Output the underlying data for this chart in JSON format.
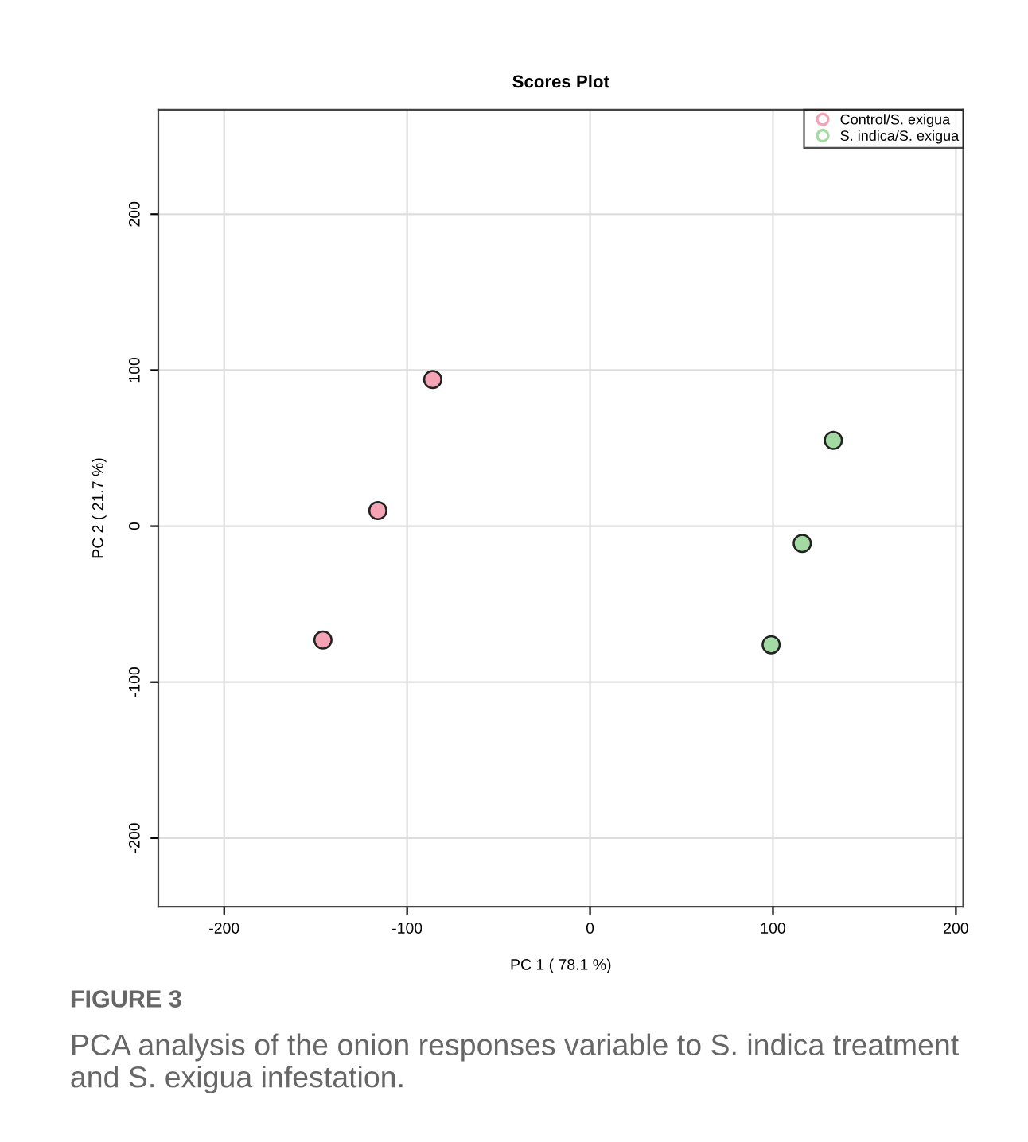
{
  "chart_data": {
    "type": "scatter",
    "title": "Scores Plot",
    "xlabel": "PC 1 ( 78.1 %)",
    "ylabel": "PC 2 ( 21.7 %)",
    "xlim": [
      -236,
      204
    ],
    "ylim": [
      -244,
      267
    ],
    "xticks": [
      -200,
      -100,
      0,
      100,
      200
    ],
    "yticks": [
      -200,
      -100,
      0,
      100,
      200
    ],
    "grid": true,
    "legend": "top right",
    "marker": "circle",
    "series": [
      {
        "name": "Control/S. exigua",
        "color": "#f4a3b4",
        "x": [
          -146,
          -116,
          -86
        ],
        "values": [
          -73,
          10,
          94
        ]
      },
      {
        "name": "S. indica/S. exigua",
        "color": "#a3d9a3",
        "x": [
          99,
          116,
          133
        ],
        "values": [
          -76,
          -11,
          55
        ]
      }
    ],
    "annotations": [
      "FIGURE 3",
      "PCA analysis of the onion responses variable to S. indica treatment and S. exigua infestation."
    ]
  }
}
